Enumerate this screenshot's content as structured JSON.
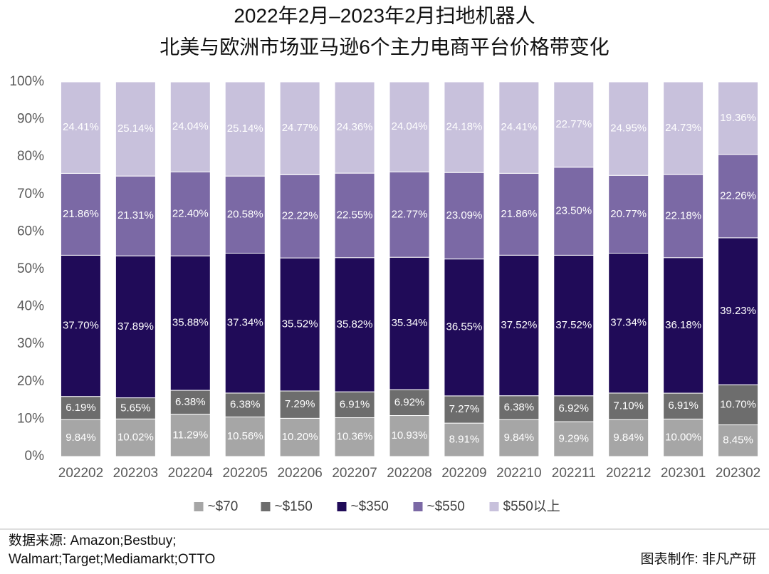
{
  "chart_data": {
    "type": "stacked_bar",
    "title": "2022年2月–2023年2月扫地机器人",
    "subtitle": "北美与欧洲市场亚马逊6个主力电商平台价格带变化",
    "categories": [
      "202202",
      "202203",
      "202204",
      "202205",
      "202206",
      "202207",
      "202208",
      "202209",
      "202210",
      "202211",
      "202212",
      "202301",
      "202302"
    ],
    "series": [
      {
        "name": "~$70",
        "color": "#a6a6a6",
        "values": [
          9.84,
          10.02,
          11.29,
          10.56,
          10.2,
          10.36,
          10.93,
          8.91,
          9.84,
          9.29,
          9.84,
          10.0,
          8.45
        ],
        "value_labels": [
          "9.84%",
          "10.02%",
          "11.29%",
          "10.56%",
          "10.20%",
          "10.36%",
          "10.93%",
          "8.91%",
          "9.84%",
          "9.29%",
          "9.84%",
          "10.00%",
          "8.45%"
        ]
      },
      {
        "name": "~$150",
        "color": "#6d6d6d",
        "values": [
          6.19,
          5.65,
          6.38,
          6.38,
          7.29,
          6.91,
          6.92,
          7.27,
          6.38,
          6.92,
          7.1,
          6.91,
          10.7
        ],
        "value_labels": [
          "6.19%",
          "5.65%",
          "6.38%",
          "6.38%",
          "7.29%",
          "6.91%",
          "6.92%",
          "7.27%",
          "6.38%",
          "6.92%",
          "7.10%",
          "6.91%",
          "10.70%"
        ]
      },
      {
        "name": "~$350",
        "color": "#200b58",
        "values": [
          37.7,
          37.89,
          35.88,
          37.34,
          35.52,
          35.82,
          35.34,
          36.55,
          37.52,
          37.52,
          37.34,
          36.18,
          39.23
        ],
        "value_labels": [
          "37.70%",
          "37.89%",
          "35.88%",
          "37.34%",
          "35.52%",
          "35.82%",
          "35.34%",
          "36.55%",
          "37.52%",
          "37.52%",
          "37.34%",
          "36.18%",
          "39.23%"
        ]
      },
      {
        "name": "~$550",
        "color": "#7b69a5",
        "values": [
          21.86,
          21.31,
          22.4,
          20.58,
          22.22,
          22.55,
          22.77,
          23.09,
          21.86,
          23.5,
          20.77,
          22.18,
          22.26
        ],
        "value_labels": [
          "21.86%",
          "21.31%",
          "22.40%",
          "20.58%",
          "22.22%",
          "22.55%",
          "22.77%",
          "23.09%",
          "21.86%",
          "23.50%",
          "20.77%",
          "22.18%",
          "22.26%"
        ]
      },
      {
        "name": "$550以上",
        "color": "#c8c1dc",
        "values": [
          24.41,
          25.14,
          24.04,
          25.14,
          24.77,
          24.36,
          24.04,
          24.18,
          24.41,
          22.77,
          24.95,
          24.73,
          19.36
        ],
        "value_labels": [
          "24.41%",
          "25.14%",
          "24.04%",
          "25.14%",
          "24.77%",
          "24.36%",
          "24.04%",
          "24.18%",
          "24.41%",
          "22.77%",
          "24.95%",
          "24.73%",
          "19.36%"
        ]
      }
    ],
    "ylim": [
      0,
      100
    ],
    "yticks": [
      {
        "value": 0,
        "label": "0%"
      },
      {
        "value": 10,
        "label": "10%"
      },
      {
        "value": 20,
        "label": "20%"
      },
      {
        "value": 30,
        "label": "30%"
      },
      {
        "value": 40,
        "label": "40%"
      },
      {
        "value": 50,
        "label": "50%"
      },
      {
        "value": 60,
        "label": "60%"
      },
      {
        "value": 70,
        "label": "70%"
      },
      {
        "value": 80,
        "label": "80%"
      },
      {
        "value": 90,
        "label": "90%"
      },
      {
        "value": 100,
        "label": "100%"
      }
    ],
    "grid": false,
    "legend": "bottom",
    "source": [
      "数据来源: Amazon;Bestbuy;",
      "Walmart;Target;Mediamarkt;OTTO"
    ],
    "credit": "图表制作: 非凡产研"
  }
}
